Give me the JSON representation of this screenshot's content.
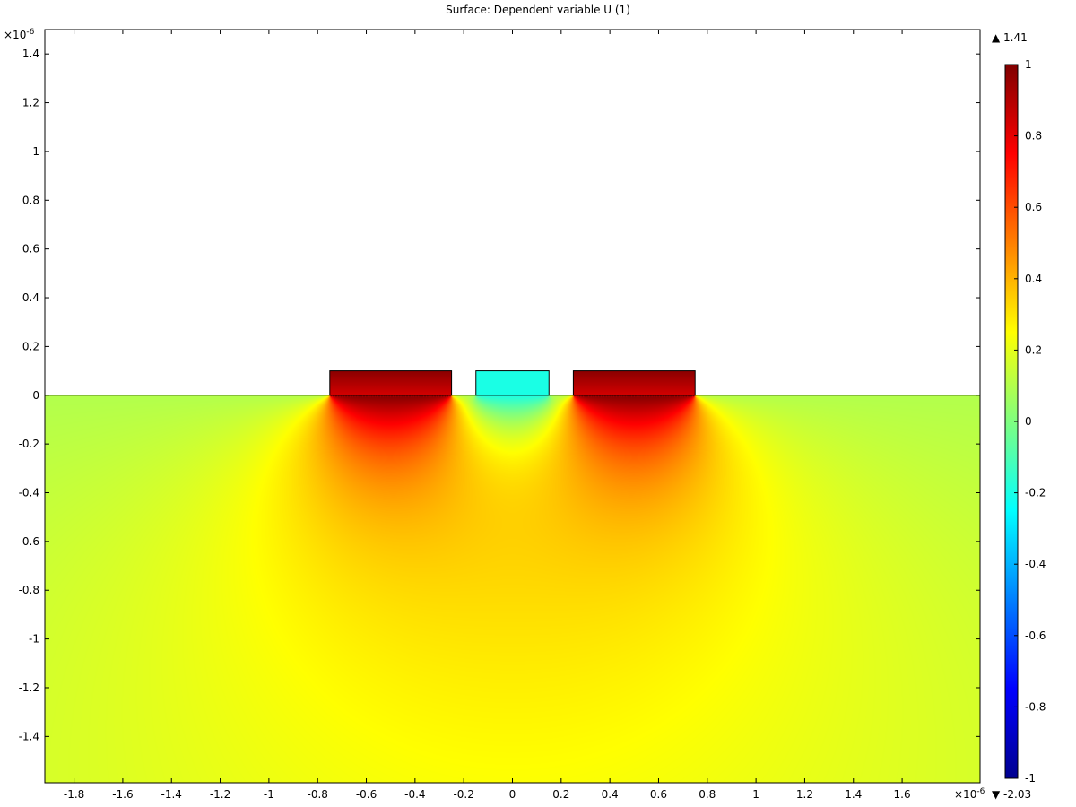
{
  "chart_data": {
    "type": "heatmap",
    "title": "Surface: Dependent variable U (1)",
    "x_scale_label": "×10",
    "x_scale_exp": "-6",
    "y_scale_label": "×10",
    "y_scale_exp": "-6",
    "xlim": [
      -1.92,
      1.92
    ],
    "ylim": [
      -1.59,
      1.5
    ],
    "x_ticks": [
      -1.8,
      -1.6,
      -1.4,
      -1.2,
      -1,
      -0.8,
      -0.6,
      -0.4,
      -0.2,
      0,
      0.2,
      0.4,
      0.6,
      0.8,
      1,
      1.2,
      1.4,
      1.6
    ],
    "x_tick_labels": [
      "-1.8",
      "-1.6",
      "-1.4",
      "-1.2",
      "-1",
      "-0.8",
      "-0.6",
      "-0.4",
      "-0.2",
      "0",
      "0.2",
      "0.4",
      "0.6",
      "0.8",
      "1",
      "1.2",
      "1.4",
      "1.6"
    ],
    "y_ticks": [
      1.4,
      1.2,
      1,
      0.8,
      0.6,
      0.4,
      0.2,
      0,
      -0.2,
      -0.4,
      -0.6,
      -0.8,
      -1,
      -1.2,
      -1.4
    ],
    "y_tick_labels": [
      "1.4",
      "1.2",
      "1",
      "0.8",
      "0.6",
      "0.4",
      "0.2",
      "0",
      "-0.2",
      "-0.4",
      "-0.6",
      "-0.8",
      "-1",
      "-1.2",
      "-1.4"
    ],
    "colorbar": {
      "colormap": "jet",
      "max_label": "▲ 1.41",
      "min_label": "▼ -2.03",
      "range": [
        -1,
        1
      ],
      "ticks": [
        1,
        0.8,
        0.6,
        0.4,
        0.2,
        0,
        -0.2,
        -0.4,
        -0.6,
        -0.8,
        -1
      ],
      "tick_labels": [
        "1",
        "0.8",
        "0.6",
        "0.4",
        "0.2",
        "0",
        "-0.2",
        "-0.4",
        "-0.6",
        "-0.8",
        "-1"
      ]
    },
    "domain": {
      "x_range": [
        -1.92,
        1.92
      ],
      "y_range": [
        -1.59,
        0
      ]
    },
    "electrodes": [
      {
        "x_range": [
          -0.75,
          -0.25
        ],
        "y_range": [
          0,
          0.1
        ],
        "value": 1
      },
      {
        "x_range": [
          -0.15,
          0.15
        ],
        "y_range": [
          0,
          0.1
        ],
        "value": -0.2
      },
      {
        "x_range": [
          0.25,
          0.75
        ],
        "y_range": [
          0,
          0.1
        ],
        "value": 1
      }
    ],
    "background_value": 0.1,
    "grid": false
  }
}
